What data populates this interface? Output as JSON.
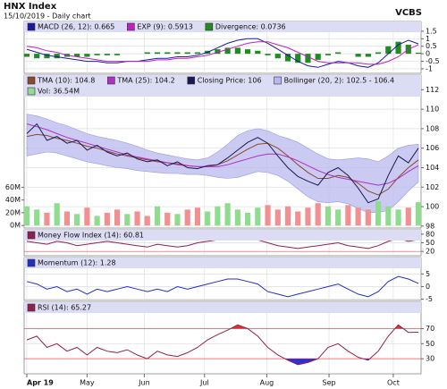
{
  "header": {
    "title": "HNX Index",
    "subtitle": "15/10/2019 - Daily chart",
    "brand": "VCBS"
  },
  "x_axis": {
    "xlim": [
      0,
      39
    ],
    "xticks": [
      {
        "value": 0,
        "label": "Apr 19"
      },
      {
        "value": 6,
        "label": "May"
      },
      {
        "value": 11.7,
        "label": "Jun"
      },
      {
        "value": 17.7,
        "label": "Jul"
      },
      {
        "value": 23.9,
        "label": "Aug"
      },
      {
        "value": 30.1,
        "label": "Sep"
      },
      {
        "value": 36.5,
        "label": "Oct"
      }
    ]
  },
  "chart_data": [
    {
      "type": "line",
      "ylim": [
        -1.3,
        2.15
      ],
      "yticks": [
        1.5,
        1,
        0.5,
        0,
        -0.5,
        -1
      ],
      "grid": true,
      "series": [
        {
          "name": "MACD (26, 12): 0.665",
          "color": "#1a1aa0",
          "style": "line",
          "values": [
            0.3,
            0.1,
            -0.1,
            -0.2,
            -0.3,
            -0.4,
            -0.5,
            -0.5,
            -0.6,
            -0.6,
            -0.5,
            -0.5,
            -0.4,
            -0.3,
            -0.3,
            -0.2,
            -0.2,
            -0.1,
            0.1,
            0.4,
            0.7,
            0.9,
            1.0,
            1.0,
            0.7,
            0.3,
            -0.1,
            -0.5,
            -0.8,
            -0.9,
            -0.7,
            -0.5,
            -0.6,
            -0.8,
            -0.9,
            -0.6,
            0.0,
            0.6,
            0.9,
            0.665
          ]
        },
        {
          "name": "EXP (9): 0.5913",
          "color": "#c020c0",
          "style": "line",
          "values": [
            0.5,
            0.4,
            0.2,
            0.1,
            -0.1,
            -0.2,
            -0.3,
            -0.4,
            -0.5,
            -0.5,
            -0.5,
            -0.5,
            -0.5,
            -0.4,
            -0.4,
            -0.3,
            -0.3,
            -0.2,
            -0.1,
            0.1,
            0.3,
            0.5,
            0.7,
            0.8,
            0.8,
            0.6,
            0.4,
            0.1,
            -0.2,
            -0.5,
            -0.6,
            -0.6,
            -0.6,
            -0.6,
            -0.7,
            -0.7,
            -0.5,
            -0.2,
            0.3,
            0.5913
          ]
        },
        {
          "name": "Divergence: 0.0736",
          "color": "#1e8c1e",
          "style": "bar",
          "values": [
            -0.2,
            -0.3,
            -0.3,
            -0.3,
            -0.2,
            -0.2,
            -0.2,
            -0.1,
            -0.1,
            -0.1,
            0,
            0,
            0.1,
            0.1,
            0.1,
            0.1,
            0.1,
            0.1,
            0.2,
            0.3,
            0.4,
            0.4,
            0.3,
            0.2,
            -0.1,
            -0.3,
            -0.5,
            -0.6,
            -0.6,
            -0.4,
            -0.1,
            0.1,
            0,
            -0.2,
            -0.2,
            0.1,
            0.5,
            0.8,
            0.6,
            0.0736
          ]
        }
      ]
    },
    {
      "type": "line",
      "ylim": [
        97.8,
        113.5
      ],
      "yticks": [
        112,
        110,
        108,
        106,
        104,
        102,
        100,
        98
      ],
      "grid": true,
      "y2lim": [
        -4,
        236
      ],
      "y2ticks": [
        {
          "value": 60,
          "label": "60M"
        },
        {
          "value": 40,
          "label": "40M"
        },
        {
          "value": 20,
          "label": "20M"
        },
        {
          "value": 0,
          "label": "0M"
        }
      ],
      "series": [
        {
          "name": "TMA (10): 104.8",
          "color": "#8b4a2b",
          "style": "line",
          "values": [
            107.2,
            107.4,
            107.3,
            107.0,
            106.8,
            106.5,
            106.2,
            106.0,
            105.7,
            105.4,
            105.2,
            105.0,
            104.8,
            104.6,
            104.5,
            104.4,
            104.2,
            104.1,
            104.1,
            104.3,
            104.7,
            105.3,
            105.9,
            106.4,
            106.5,
            106.0,
            105.2,
            104.3,
            103.5,
            102.9,
            102.9,
            103.2,
            103.0,
            102.4,
            101.6,
            101.2,
            101.8,
            103.0,
            104.0,
            104.8
          ]
        },
        {
          "name": "TMA (25): 104.2",
          "color": "#b030c0",
          "style": "line",
          "values": [
            108.5,
            108.2,
            107.9,
            107.5,
            107.1,
            106.8,
            106.5,
            106.2,
            105.9,
            105.6,
            105.3,
            105.1,
            104.9,
            104.7,
            104.5,
            104.3,
            104.2,
            104.1,
            104.1,
            104.1,
            104.3,
            104.6,
            104.9,
            105.2,
            105.4,
            105.4,
            105.1,
            104.7,
            104.2,
            103.7,
            103.3,
            103.0,
            102.8,
            102.6,
            102.4,
            102.2,
            102.4,
            102.9,
            103.6,
            104.2
          ]
        },
        {
          "name": "Closing Price: 106",
          "color": "#1a1a50",
          "style": "line",
          "values": [
            107.5,
            108.5,
            106.8,
            107.2,
            106.5,
            106.8,
            105.8,
            106.3,
            105.6,
            105.2,
            105.5,
            104.9,
            104.6,
            104.8,
            104.2,
            104.6,
            104.0,
            103.9,
            104.2,
            104.3,
            105.0,
            105.8,
            106.6,
            107.1,
            106.5,
            105.2,
            104.0,
            103.1,
            102.6,
            102.2,
            103.5,
            104.0,
            103.2,
            101.9,
            100.4,
            100.8,
            103.2,
            105.2,
            104.5,
            106.0
          ]
        },
        {
          "name": "Bollinger (20, 2): 102.5 - 106.4",
          "color": "#b8b8ee",
          "style": "band",
          "upper": [
            109.5,
            109.3,
            109.0,
            108.6,
            108.3,
            107.9,
            107.5,
            107.2,
            107.0,
            106.8,
            106.5,
            106.2,
            105.8,
            105.5,
            105.3,
            105.1,
            104.9,
            104.8,
            105.0,
            105.6,
            106.4,
            107.3,
            107.8,
            108.0,
            107.8,
            107.3,
            107.0,
            106.6,
            106.0,
            105.4,
            104.9,
            104.8,
            104.9,
            105.0,
            104.9,
            104.6,
            105.2,
            106.0,
            106.3,
            106.4
          ],
          "lower": [
            105.2,
            105.4,
            105.6,
            105.5,
            105.2,
            104.9,
            104.6,
            104.4,
            104.2,
            104.0,
            103.9,
            103.7,
            103.6,
            103.5,
            103.4,
            103.4,
            103.3,
            103.3,
            103.2,
            103.0,
            102.9,
            103.0,
            103.3,
            103.6,
            103.5,
            103.2,
            102.6,
            101.8,
            101.0,
            100.5,
            100.4,
            100.5,
            100.3,
            99.8,
            99.4,
            99.4,
            99.6,
            100.5,
            101.6,
            102.5
          ]
        },
        {
          "name": "Vol: 36.54M",
          "color": "#8fdc8f",
          "down_color": "#f09090",
          "up_down_by": 2,
          "style": "volume",
          "axis": "y2",
          "values": [
            30,
            25,
            20,
            35,
            22,
            18,
            28,
            15,
            20,
            25,
            18,
            22,
            15,
            30,
            20,
            18,
            25,
            28,
            22,
            30,
            35,
            25,
            20,
            28,
            32,
            25,
            30,
            22,
            28,
            35,
            30,
            25,
            32,
            28,
            25,
            38,
            30,
            25,
            28,
            36.54
          ]
        }
      ]
    },
    {
      "type": "line",
      "ylim": [
        5,
        95
      ],
      "yticks": [
        80,
        50,
        20
      ],
      "grid": true,
      "ref_color": "#e05050",
      "series": [
        {
          "name": "Money Flow Index (14): 60.81",
          "color": "#902050",
          "style": "line",
          "values": [
            55,
            50,
            45,
            55,
            50,
            40,
            45,
            50,
            55,
            50,
            45,
            40,
            35,
            45,
            40,
            35,
            40,
            50,
            55,
            60,
            70,
            80,
            70,
            60,
            50,
            40,
            35,
            30,
            35,
            40,
            45,
            50,
            40,
            35,
            30,
            40,
            55,
            65,
            55,
            60.81
          ]
        }
      ]
    },
    {
      "type": "line",
      "ylim": [
        -5.5,
        11.5
      ],
      "yticks": [
        5,
        0,
        -5
      ],
      "grid": true,
      "series": [
        {
          "name": "Momentum (12): 1.28",
          "color": "#2030c0",
          "style": "line",
          "values": [
            2,
            1,
            -1,
            0,
            -2,
            -1,
            -3,
            -1,
            -2,
            -1,
            0,
            -1,
            -2,
            -1,
            -2,
            0,
            -1,
            0,
            1,
            2,
            3,
            3,
            2,
            1,
            -2,
            -3,
            -4,
            -3,
            -2,
            -1,
            0,
            1,
            -1,
            -3,
            -4,
            -2,
            2,
            4,
            3,
            1.28
          ]
        }
      ]
    },
    {
      "type": "line",
      "ylim": [
        10,
        105
      ],
      "yticks": [
        70,
        50,
        30
      ],
      "grid": true,
      "ref_color": "#e05050",
      "shade_beyond_ref": true,
      "shade_colors": [
        "#e03030",
        "#3030d0"
      ],
      "series": [
        {
          "name": "RSI (14): 65.27",
          "color": "#902050",
          "style": "line",
          "values": [
            55,
            60,
            45,
            50,
            40,
            45,
            35,
            45,
            40,
            38,
            42,
            35,
            30,
            40,
            35,
            33,
            38,
            45,
            55,
            62,
            68,
            75,
            70,
            60,
            45,
            35,
            28,
            22,
            25,
            30,
            45,
            50,
            40,
            32,
            28,
            40,
            60,
            75,
            65,
            65.27
          ]
        }
      ]
    }
  ]
}
